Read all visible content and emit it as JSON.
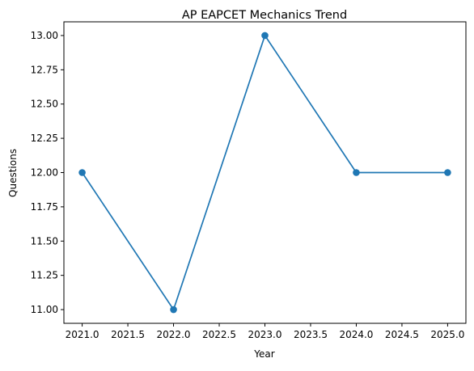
{
  "chart_data": {
    "type": "line",
    "title": "AP EAPCET Mechanics Trend",
    "xlabel": "Year",
    "ylabel": "Questions",
    "x": [
      2021,
      2022,
      2023,
      2024,
      2025
    ],
    "y": [
      12,
      11,
      13,
      12,
      12
    ],
    "xlim": [
      2020.8,
      2025.2
    ],
    "ylim": [
      10.9,
      13.1
    ],
    "xticks": [
      "2021.0",
      "2021.5",
      "2022.0",
      "2022.5",
      "2023.0",
      "2023.5",
      "2024.0",
      "2024.5",
      "2025.0"
    ],
    "yticks": [
      "11.00",
      "11.25",
      "11.50",
      "11.75",
      "12.00",
      "12.25",
      "12.50",
      "12.75",
      "13.00"
    ],
    "grid": false,
    "line_color": "#1f77b4",
    "marker": "circle"
  }
}
